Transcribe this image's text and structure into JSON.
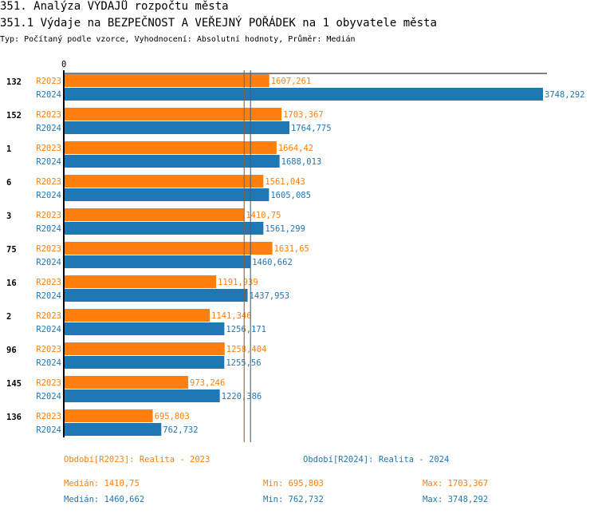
{
  "header": {
    "title": "351. Analýza VÝDAJŮ rozpočtu města",
    "subtitle": "351.1 Výdaje na BEZPEČNOST A VEŘEJNÝ POŘÁDEK na 1 obyvatele města",
    "info": "Typ: Počítaný podle vzorce, Vyhodnocení: Absolutní hodnoty, Průměr: Medián"
  },
  "chart_data": {
    "type": "bar",
    "orientation": "horizontal",
    "x_tick": "0",
    "xlim": [
      0,
      3748.292
    ],
    "categories": [
      "132",
      "152",
      "1",
      "6",
      "3",
      "75",
      "16",
      "2",
      "96",
      "145",
      "136"
    ],
    "series": [
      {
        "name": "R2023",
        "color": "#ff7f0e",
        "values": [
          1607.261,
          1703.367,
          1664.42,
          1561.043,
          1410.75,
          1631.65,
          1191.939,
          1141.346,
          1258.404,
          973.246,
          695.803
        ],
        "labels": [
          "1607,261",
          "1703,367",
          "1664,42",
          "1561,043",
          "1410,75",
          "1631,65",
          "1191,939",
          "1141,346",
          "1258,404",
          "973,246",
          "695,803"
        ],
        "median": 1410.75
      },
      {
        "name": "R2024",
        "color": "#1f77b4",
        "values": [
          3748.292,
          1764.775,
          1688.013,
          1605.085,
          1561.299,
          1460.662,
          1437.953,
          1256.171,
          1255.56,
          1220.386,
          762.732
        ],
        "labels": [
          "3748,292",
          "1764,775",
          "1688,013",
          "1605,085",
          "1561,299",
          "1460,662",
          "1437,953",
          "1256,171",
          "1255,56",
          "1220,386",
          "762,732"
        ],
        "median": 1460.662
      }
    ]
  },
  "legend": {
    "r2023": "Období[R2023]: Realita - 2023",
    "r2024": "Období[R2024]: Realita - 2024",
    "median2023": "Medián: 1410,75",
    "min2023": "Min: 695,803",
    "max2023": "Max: 1703,367",
    "median2024": "Medián: 1460,662",
    "min2024": "Min: 762,732",
    "max2024": "Max: 3748,292"
  }
}
